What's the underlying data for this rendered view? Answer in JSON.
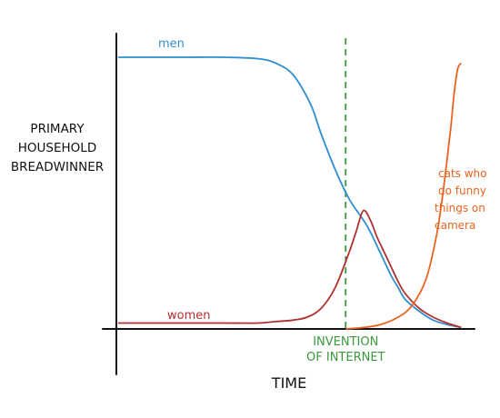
{
  "chart_data": {
    "type": "line",
    "title": "",
    "xlabel": "TIME",
    "ylabel": [
      "PRIMARY",
      "HOUSEHOLD",
      "BREADWINNER"
    ],
    "xlim": [
      0,
      100
    ],
    "ylim": [
      0,
      100
    ],
    "grid": false,
    "legend": "none",
    "series": [
      {
        "name": "men",
        "color": "#2f8fd0",
        "x": [
          0,
          10,
          20,
          30,
          40,
          45,
          50,
          55,
          58,
          62,
          66,
          70,
          72,
          74,
          76,
          78,
          80,
          82,
          86,
          90,
          94,
          98
        ],
        "y": [
          92,
          92,
          92,
          92,
          91.5,
          90,
          86,
          76,
          66,
          54,
          44,
          37,
          33,
          28,
          23,
          18,
          14,
          10,
          6,
          3,
          1.5,
          0.5
        ]
      },
      {
        "name": "women",
        "color": "#b33030",
        "x": [
          0,
          10,
          20,
          30,
          40,
          45,
          50,
          54,
          58,
          62,
          66,
          68,
          70,
          72,
          74,
          76,
          78,
          80,
          82,
          86,
          90,
          94,
          98
        ],
        "y": [
          2,
          2,
          2,
          2,
          2,
          2.5,
          3,
          4,
          7,
          14,
          26,
          33,
          40,
          37,
          31,
          26,
          21,
          16,
          12,
          7,
          4,
          2,
          0.5
        ]
      },
      {
        "name": "cats who do funny things on camera",
        "color": "#e86420",
        "x": [
          65,
          70,
          75,
          80,
          84,
          88,
          91,
          93,
          95,
          96,
          97,
          98
        ],
        "y": [
          0,
          0.5,
          1.5,
          4,
          8,
          17,
          32,
          48,
          68,
          80,
          88,
          90
        ]
      }
    ],
    "annotations": {
      "men_label": "men",
      "women_label": "women",
      "cats_label": [
        "cats who",
        "do funny",
        "things on",
        "camera"
      ],
      "event_label": [
        "INVENTION",
        "OF INTERNET"
      ],
      "event_x": 65,
      "event_color": "#3a9a3a",
      "axis_color": "#111111"
    }
  }
}
